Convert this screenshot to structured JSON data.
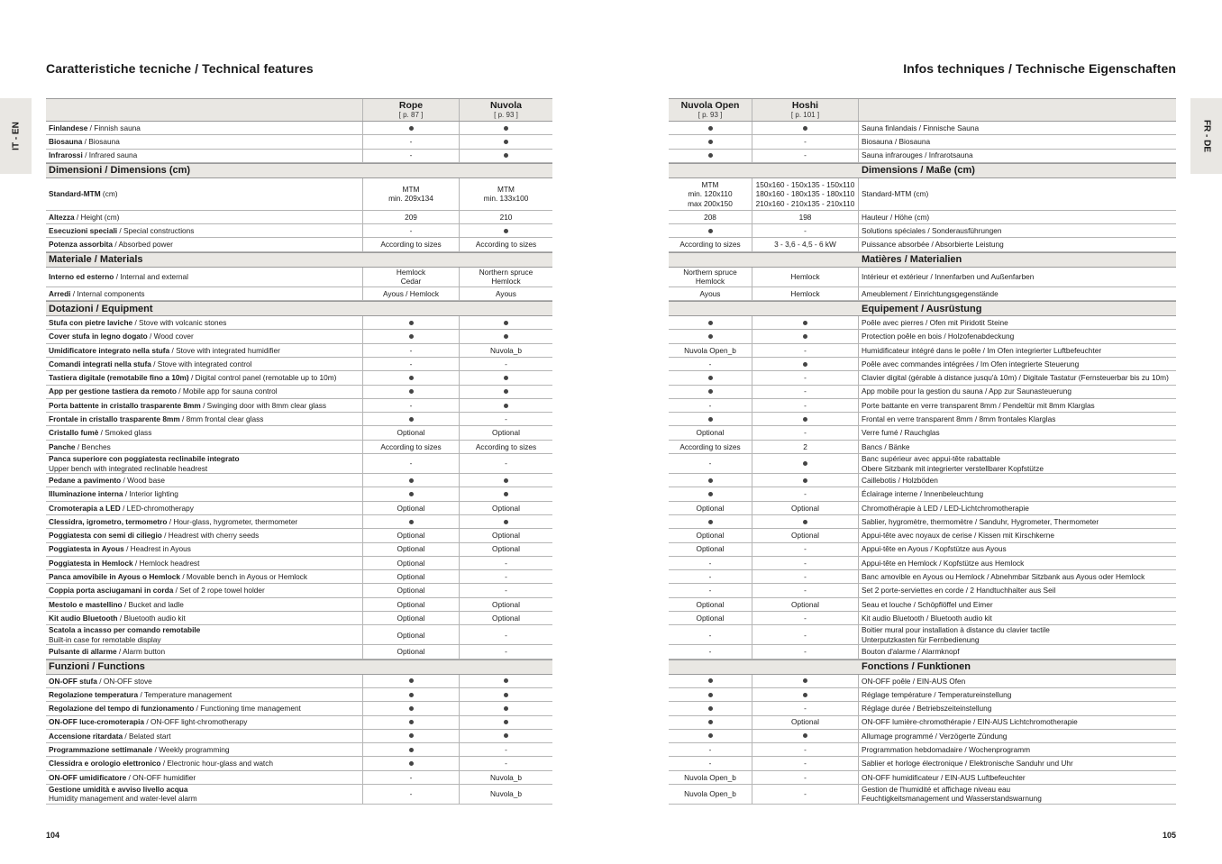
{
  "left": {
    "title": "Caratteristiche tecniche / Technical features",
    "side_tab": "IT - EN",
    "page_number": "104",
    "columns": [
      {
        "name": "Rope",
        "page": "[ p. 87 ]"
      },
      {
        "name": "Nuvola",
        "page": "[ p. 93 ]"
      }
    ]
  },
  "right": {
    "title": "Infos techniques / Technische Eigenschaften",
    "side_tab": "FR - DE",
    "page_number": "105",
    "columns": [
      {
        "name": "Nuvola Open",
        "page": "[ p. 93 ]"
      },
      {
        "name": "Hoshi",
        "page": "[ p. 101 ]"
      }
    ]
  },
  "rows": [
    {
      "it": "Finlandese",
      "en": " / Finnish sauna",
      "l": [
        "●",
        "●"
      ],
      "r": [
        "●",
        "●"
      ],
      "fr": "Sauna finlandais / Finnische Sauna"
    },
    {
      "it": "Biosauna",
      "en": " / Biosauna",
      "l": [
        "-",
        "●"
      ],
      "r": [
        "●",
        "-"
      ],
      "fr": "Biosauna / Biosauna"
    },
    {
      "it": "Infrarossi",
      "en": " / Infrared sauna",
      "l": [
        "-",
        "●"
      ],
      "r": [
        "●",
        "-"
      ],
      "fr": "Sauna infrarouges / Infrarotsauna"
    },
    {
      "section": "Dimensioni / Dimensions (cm)",
      "section_fr": "Dimensions / Maße (cm)"
    },
    {
      "it": "Standard-MTM",
      "en": " (cm)",
      "l": [
        "MTM\nmin. 209x134",
        "MTM\nmin. 133x100"
      ],
      "r": [
        "MTM\nmin. 120x110\nmax 200x150",
        "150x160 - 150x135 - 150x110\n180x160 - 180x135 - 180x110\n210x160 - 210x135 - 210x110"
      ],
      "fr": "Standard-MTM (cm)"
    },
    {
      "it": "Altezza",
      "en": " / Height (cm)",
      "l": [
        "209",
        "210"
      ],
      "r": [
        "208",
        "198"
      ],
      "fr": "Hauteur / Höhe (cm)"
    },
    {
      "it": "Esecuzioni speciali",
      "en": " / Special constructions",
      "l": [
        "-",
        "●"
      ],
      "r": [
        "●",
        "-"
      ],
      "fr": "Solutions spéciales / Sonderausführungen"
    },
    {
      "it": "Potenza assorbita",
      "en": " / Absorbed power",
      "l": [
        "According to sizes",
        "According to sizes"
      ],
      "r": [
        "According to sizes",
        "3 - 3,6 - 4,5 - 6 kW"
      ],
      "fr": "Puissance absorbée / Absorbierte Leistung"
    },
    {
      "section": "Materiale / Materials",
      "section_fr": "Matières / Materialien"
    },
    {
      "it": "Interno ed esterno",
      "en": " / Internal and external",
      "l": [
        "Hemlock\nCedar",
        "Northern spruce\nHemlock"
      ],
      "r": [
        "Northern spruce\nHemlock",
        "Hemlock"
      ],
      "fr": "Intérieur et extérieur / Innenfarben und Außenfarben"
    },
    {
      "it": "Arredi",
      "en": " / Internal components",
      "l": [
        "Ayous / Hemlock",
        "Ayous"
      ],
      "r": [
        "Ayous",
        "Hemlock"
      ],
      "fr": "Ameublement / Einrichtungsgegenstände"
    },
    {
      "section": "Dotazioni / Equipment",
      "section_fr": "Equipement / Ausrüstung"
    },
    {
      "it": "Stufa con pietre laviche",
      "en": " / Stove with volcanic stones",
      "l": [
        "●",
        "●"
      ],
      "r": [
        "●",
        "●"
      ],
      "fr": "Poêle avec pierres / Ofen mit Piridotit Steine"
    },
    {
      "it": "Cover stufa in legno dogato",
      "en": " / Wood cover",
      "l": [
        "●",
        "●"
      ],
      "r": [
        "●",
        "●"
      ],
      "fr": "Protection poêle en bois / Holzofenabdeckung"
    },
    {
      "it": "Umidificatore integrato nella stufa",
      "en": " / Stove with integrated humidifier",
      "l": [
        "-",
        "Nuvola_b"
      ],
      "r": [
        "Nuvola Open_b",
        "-"
      ],
      "fr": "Humidificateur intégré dans le poêle / Im Ofen integrierter Luftbefeuchter"
    },
    {
      "it": "Comandi integrati nella stufa",
      "en": " / Stove with integrated control",
      "l": [
        "-",
        "-"
      ],
      "r": [
        "-",
        "●"
      ],
      "fr": "Poêle avec commandes intégrées / Im Ofen integrierte Steuerung"
    },
    {
      "it": "Tastiera digitale (remotabile fino a 10m)",
      "en": " / Digital control panel (remotable up to 10m)",
      "l": [
        "●",
        "●"
      ],
      "r": [
        "●",
        "-"
      ],
      "fr": "Clavier digital (gérable à distance jusqu'à 10m) / Digitale Tastatur (Fernsteuerbar bis zu 10m)"
    },
    {
      "it": "App per gestione tastiera da remoto",
      "en": " / Mobile app for sauna control",
      "l": [
        "●",
        "●"
      ],
      "r": [
        "●",
        "-"
      ],
      "fr": "App mobile pour la gestion du sauna / App zur Saunasteuerung"
    },
    {
      "it": "Porta battente in cristallo trasparente 8mm",
      "en": " / Swinging door with 8mm clear glass",
      "l": [
        "-",
        "●"
      ],
      "r": [
        "-",
        "-"
      ],
      "fr": "Porte battante en verre transparent 8mm / Pendeltür mit 8mm Klarglas"
    },
    {
      "it": "Frontale in cristallo trasparente 8mm",
      "en": " / 8mm frontal clear glass",
      "l": [
        "●",
        "-"
      ],
      "r": [
        "●",
        "●"
      ],
      "fr": "Frontal en verre transparent 8mm / 8mm frontales Klarglas"
    },
    {
      "it": "Cristallo fumè",
      "en": " / Smoked glass",
      "l": [
        "Optional",
        "Optional"
      ],
      "r": [
        "Optional",
        "-"
      ],
      "fr": "Verre fumé / Rauchglas"
    },
    {
      "it": "Panche",
      "en": " / Benches",
      "l": [
        "According to sizes",
        "According to sizes"
      ],
      "r": [
        "According to sizes",
        "2"
      ],
      "fr": "Bancs / Bänke"
    },
    {
      "it": "Panca superiore con poggiatesta reclinabile integrato",
      "en": "\nUpper bench with integrated reclinable headrest",
      "l": [
        "-",
        "-"
      ],
      "r": [
        "-",
        "●"
      ],
      "fr": "Banc supérieur avec appui-tête rabattable\nObere Sitzbank mit integrierter verstellbarer Kopfstütze"
    },
    {
      "it": "Pedane a pavimento",
      "en": " / Wood base",
      "l": [
        "●",
        "●"
      ],
      "r": [
        "●",
        "●"
      ],
      "fr": "Caillebotis / Holzböden"
    },
    {
      "it": "Illuminazione interna",
      "en": " / Interior lighting",
      "l": [
        "●",
        "●"
      ],
      "r": [
        "●",
        "-"
      ],
      "fr": "Éclairage interne / Innenbeleuchtung"
    },
    {
      "it": "Cromoterapia a LED",
      "en": " / LED-chromotherapy",
      "l": [
        "Optional",
        "Optional"
      ],
      "r": [
        "Optional",
        "Optional"
      ],
      "fr": "Chromothérapie à LED / LED-Lichtchromotherapie"
    },
    {
      "it": "Clessidra, igrometro, termometro",
      "en": " / Hour-glass, hygrometer, thermometer",
      "l": [
        "●",
        "●"
      ],
      "r": [
        "●",
        "●"
      ],
      "fr": "Sablier, hygromètre, thermomètre / Sanduhr, Hygrometer, Thermometer"
    },
    {
      "it": "Poggiatesta con semi di ciliegio",
      "en": " / Headrest with cherry seeds",
      "l": [
        "Optional",
        "Optional"
      ],
      "r": [
        "Optional",
        "Optional"
      ],
      "fr": "Appui-tête avec noyaux de cerise / Kissen mit Kirschkerne"
    },
    {
      "it": "Poggiatesta in Ayous",
      "en": " / Headrest in Ayous",
      "l": [
        "Optional",
        "Optional"
      ],
      "r": [
        "Optional",
        "-"
      ],
      "fr": "Appui-tête en Ayous / Kopfstütze aus Ayous"
    },
    {
      "it": "Poggiatesta in Hemlock",
      "en": " / Hemlock headrest",
      "l": [
        "Optional",
        "-"
      ],
      "r": [
        "-",
        "-"
      ],
      "fr": "Appui-tête en Hemlock / Kopfstütze aus Hemlock"
    },
    {
      "it": "Panca amovibile in Ayous o Hemlock",
      "en": " / Movable bench in Ayous or Hemlock",
      "l": [
        "Optional",
        "-"
      ],
      "r": [
        "-",
        "-"
      ],
      "fr": "Banc amovible en Ayous ou Hemlock / Abnehmbar Sitzbank aus Ayous oder Hemlock"
    },
    {
      "it": "Coppia porta asciugamani in corda",
      "en": " / Set of 2 rope towel holder",
      "l": [
        "Optional",
        "-"
      ],
      "r": [
        "-",
        "-"
      ],
      "fr": "Set 2 porte-serviettes en corde / 2 Handtuchhalter aus Seil"
    },
    {
      "it": "Mestolo e mastellino",
      "en": " / Bucket and ladle",
      "l": [
        "Optional",
        "Optional"
      ],
      "r": [
        "Optional",
        "Optional"
      ],
      "fr": "Seau et louche / Schöpflöffel und Eimer"
    },
    {
      "it": "Kit audio Bluetooth",
      "en": " / Bluetooth audio kit",
      "l": [
        "Optional",
        "Optional"
      ],
      "r": [
        "Optional",
        "-"
      ],
      "fr": "Kit audio Bluetooth / Bluetooth audio kit"
    },
    {
      "it": "Scatola a incasso per comando remotabile",
      "en": "\nBuilt-in case for remotable display",
      "l": [
        "Optional",
        "-"
      ],
      "r": [
        "-",
        "-"
      ],
      "fr": "Boitier mural pour installation à distance du clavier tactile\nUnterputzkasten für Fernbedienung"
    },
    {
      "it": "Pulsante di allarme",
      "en": " / Alarm button",
      "l": [
        "Optional",
        "-"
      ],
      "r": [
        "-",
        "-"
      ],
      "fr": "Bouton d'alarme / Alarmknopf"
    },
    {
      "section": "Funzioni / Functions",
      "section_fr": "Fonctions / Funktionen"
    },
    {
      "it": "ON-OFF stufa",
      "en": " / ON-OFF stove",
      "l": [
        "●",
        "●"
      ],
      "r": [
        "●",
        "●"
      ],
      "fr": "ON-OFF poêle / EIN-AUS Ofen"
    },
    {
      "it": "Regolazione temperatura",
      "en": " / Temperature management",
      "l": [
        "●",
        "●"
      ],
      "r": [
        "●",
        "●"
      ],
      "fr": "Réglage température / Temperatureinstellung"
    },
    {
      "it": "Regolazione del tempo di funzionamento",
      "en": " / Functioning time management",
      "l": [
        "●",
        "●"
      ],
      "r": [
        "●",
        "-"
      ],
      "fr": "Réglage durée / Betriebszeiteinstellung"
    },
    {
      "it": "ON-OFF luce-cromoterapia",
      "en": " / ON-OFF light-chromotherapy",
      "l": [
        "●",
        "●"
      ],
      "r": [
        "●",
        "Optional"
      ],
      "fr": "ON-OFF lumière-chromothérapie / EIN-AUS Lichtchromotherapie"
    },
    {
      "it": "Accensione ritardata",
      "en": " / Belated start",
      "l": [
        "●",
        "●"
      ],
      "r": [
        "●",
        "●"
      ],
      "fr": "Allumage programmé / Verzögerte Zündung"
    },
    {
      "it": "Programmazione settimanale",
      "en": " / Weekly programming",
      "l": [
        "●",
        "-"
      ],
      "r": [
        "-",
        "-"
      ],
      "fr": "Programmation hebdomadaire / Wochenprogramm"
    },
    {
      "it": "Clessidra e orologio elettronico",
      "en": " / Electronic hour-glass and watch",
      "l": [
        "●",
        "-"
      ],
      "r": [
        "-",
        "-"
      ],
      "fr": "Sablier et horloge électronique / Elektronische Sanduhr und Uhr"
    },
    {
      "it": "ON-OFF umidificatore",
      "en": " / ON-OFF humidifier",
      "l": [
        "-",
        "Nuvola_b"
      ],
      "r": [
        "Nuvola Open_b",
        "-"
      ],
      "fr": "ON-OFF humidificateur / EIN-AUS Luftbefeuchter"
    },
    {
      "it": "Gestione umidità e avviso livello acqua",
      "en": "\nHumidity management and water-level alarm",
      "l": [
        "-",
        "Nuvola_b"
      ],
      "r": [
        "Nuvola Open_b",
        "-"
      ],
      "fr": "Gestion de l'humidité et affichage niveau eau\nFeuchtigkeitsmanagement und Wasserstandswarnung"
    }
  ]
}
